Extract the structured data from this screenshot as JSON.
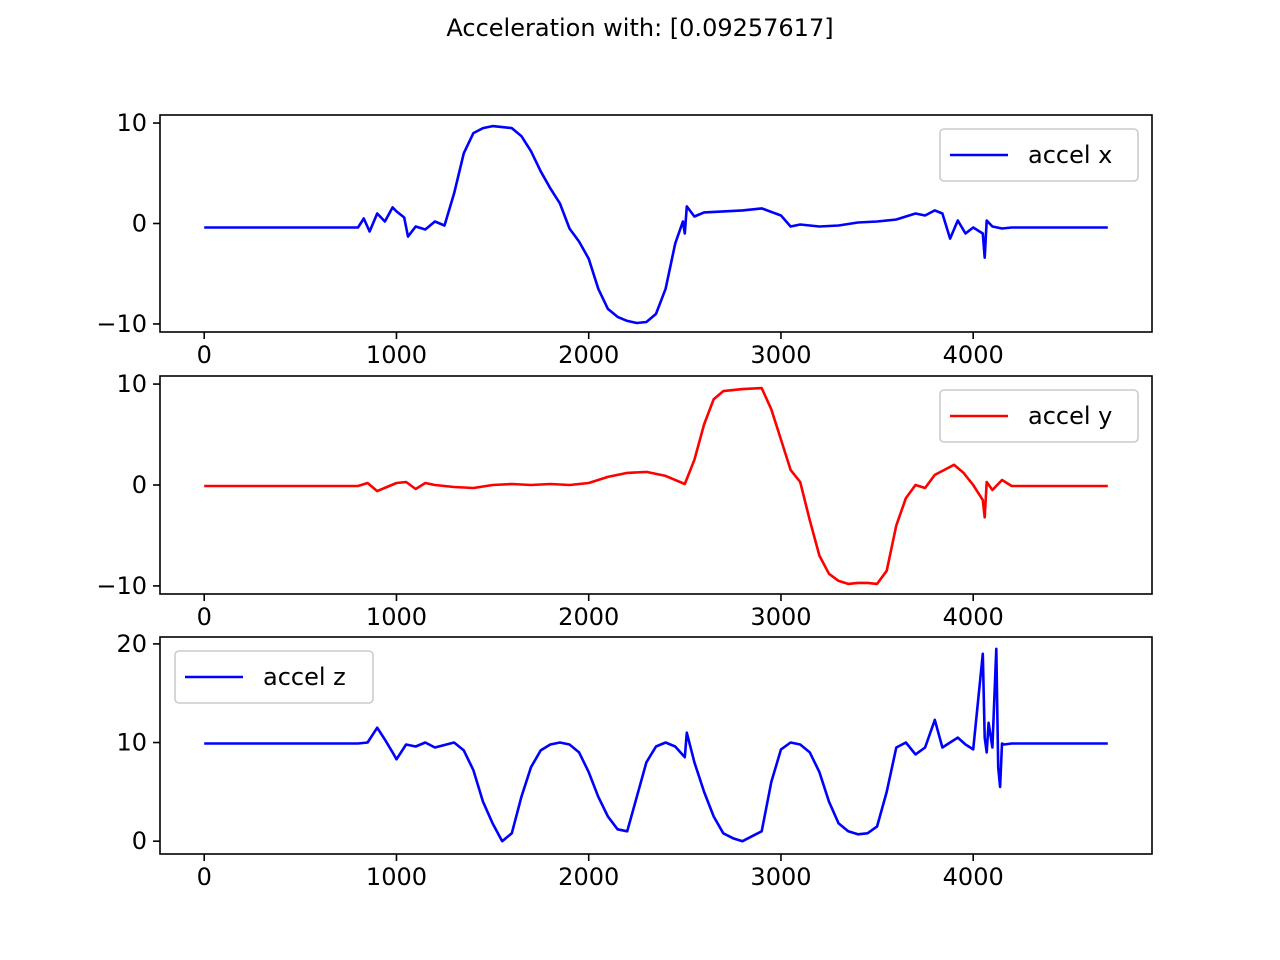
{
  "figure": {
    "title": "Acceleration with: [0.09257617]"
  },
  "chart_data": [
    {
      "type": "line",
      "title": "",
      "xlabel": "",
      "ylabel": "",
      "xlim": [
        -230,
        4930
      ],
      "ylim": [
        -10.8,
        10.8
      ],
      "xticks": [
        0,
        1000,
        2000,
        3000,
        4000
      ],
      "yticks": [
        -10,
        0,
        10
      ],
      "legend": "top-right",
      "series": [
        {
          "name": "accel x",
          "color": "#0000ff",
          "x": [
            0,
            800,
            830,
            860,
            900,
            940,
            980,
            1000,
            1040,
            1060,
            1100,
            1150,
            1200,
            1250,
            1300,
            1350,
            1400,
            1450,
            1500,
            1550,
            1600,
            1650,
            1700,
            1750,
            1800,
            1850,
            1900,
            1950,
            2000,
            2050,
            2100,
            2150,
            2200,
            2250,
            2300,
            2350,
            2400,
            2450,
            2490,
            2500,
            2510,
            2550,
            2600,
            2700,
            2800,
            2900,
            3000,
            3050,
            3100,
            3200,
            3300,
            3400,
            3500,
            3600,
            3700,
            3750,
            3800,
            3840,
            3880,
            3920,
            3960,
            4000,
            4050,
            4060,
            4070,
            4100,
            4150,
            4200,
            4700
          ],
          "y": [
            -0.4,
            -0.4,
            0.5,
            -0.8,
            1.0,
            0.2,
            1.6,
            1.2,
            0.6,
            -1.3,
            -0.3,
            -0.6,
            0.2,
            -0.2,
            3.0,
            7.0,
            9.0,
            9.5,
            9.7,
            9.6,
            9.5,
            8.7,
            7.2,
            5.2,
            3.5,
            2.0,
            -0.5,
            -1.8,
            -3.5,
            -6.5,
            -8.5,
            -9.3,
            -9.7,
            -9.9,
            -9.8,
            -9.0,
            -6.5,
            -2.0,
            0.2,
            -1.0,
            1.7,
            0.7,
            1.1,
            1.2,
            1.3,
            1.5,
            0.8,
            -0.3,
            -0.1,
            -0.3,
            -0.2,
            0.1,
            0.2,
            0.4,
            1.0,
            0.8,
            1.3,
            1.0,
            -1.5,
            0.3,
            -1.0,
            -0.4,
            -1.0,
            -3.4,
            0.3,
            -0.3,
            -0.5,
            -0.4,
            -0.4
          ]
        }
      ]
    },
    {
      "type": "line",
      "title": "",
      "xlabel": "",
      "ylabel": "",
      "xlim": [
        -230,
        4930
      ],
      "ylim": [
        -10.8,
        10.8
      ],
      "xticks": [
        0,
        1000,
        2000,
        3000,
        4000
      ],
      "yticks": [
        -10,
        0,
        10
      ],
      "legend": "top-right",
      "series": [
        {
          "name": "accel y",
          "color": "#ff0000",
          "x": [
            0,
            800,
            850,
            900,
            950,
            1000,
            1050,
            1100,
            1150,
            1200,
            1300,
            1400,
            1500,
            1600,
            1700,
            1800,
            1900,
            2000,
            2100,
            2200,
            2300,
            2400,
            2500,
            2550,
            2600,
            2650,
            2700,
            2800,
            2900,
            2950,
            3000,
            3050,
            3100,
            3150,
            3200,
            3250,
            3300,
            3350,
            3400,
            3450,
            3500,
            3550,
            3600,
            3650,
            3700,
            3750,
            3800,
            3850,
            3900,
            3950,
            4000,
            4050,
            4060,
            4070,
            4100,
            4150,
            4200,
            4700
          ],
          "y": [
            -0.1,
            -0.1,
            0.2,
            -0.6,
            -0.2,
            0.2,
            0.3,
            -0.4,
            0.2,
            0.0,
            -0.2,
            -0.3,
            0.0,
            0.1,
            0.0,
            0.1,
            0.0,
            0.2,
            0.8,
            1.2,
            1.3,
            0.9,
            0.1,
            2.5,
            6.0,
            8.5,
            9.3,
            9.5,
            9.6,
            7.5,
            4.5,
            1.5,
            0.3,
            -3.5,
            -7.0,
            -8.8,
            -9.5,
            -9.8,
            -9.7,
            -9.7,
            -9.8,
            -8.5,
            -4.0,
            -1.3,
            0.0,
            -0.3,
            1.0,
            1.5,
            2.0,
            1.2,
            0.0,
            -1.5,
            -3.2,
            0.3,
            -0.5,
            0.5,
            -0.1,
            -0.1
          ]
        }
      ]
    },
    {
      "type": "line",
      "title": "",
      "xlabel": "",
      "ylabel": "",
      "xlim": [
        -230,
        4930
      ],
      "ylim": [
        -1.3,
        20.7
      ],
      "xticks": [
        0,
        1000,
        2000,
        3000,
        4000
      ],
      "yticks": [
        0,
        10,
        20
      ],
      "legend": "top-left",
      "series": [
        {
          "name": "accel z",
          "color": "#0000ff",
          "x": [
            0,
            800,
            850,
            900,
            940,
            980,
            1000,
            1050,
            1100,
            1150,
            1200,
            1300,
            1350,
            1400,
            1450,
            1500,
            1550,
            1600,
            1650,
            1700,
            1750,
            1800,
            1850,
            1900,
            1950,
            2000,
            2050,
            2100,
            2150,
            2200,
            2250,
            2300,
            2350,
            2400,
            2450,
            2500,
            2510,
            2550,
            2600,
            2650,
            2700,
            2750,
            2800,
            2850,
            2900,
            2950,
            3000,
            3050,
            3100,
            3150,
            3200,
            3250,
            3300,
            3350,
            3400,
            3450,
            3500,
            3550,
            3600,
            3650,
            3700,
            3750,
            3800,
            3840,
            3880,
            3920,
            3960,
            4000,
            4050,
            4060,
            4070,
            4080,
            4100,
            4120,
            4130,
            4140,
            4150,
            4160,
            4200,
            4700
          ],
          "y": [
            9.9,
            9.9,
            10.0,
            11.5,
            10.3,
            9.0,
            8.3,
            9.8,
            9.6,
            10.0,
            9.5,
            10.0,
            9.2,
            7.2,
            4.0,
            1.8,
            0.0,
            0.8,
            4.5,
            7.5,
            9.2,
            9.8,
            10.0,
            9.8,
            9.0,
            7.0,
            4.5,
            2.5,
            1.2,
            1.0,
            4.5,
            8.0,
            9.6,
            10.0,
            9.6,
            8.5,
            11.0,
            8.0,
            5.0,
            2.5,
            0.8,
            0.3,
            0.0,
            0.5,
            1.0,
            6.0,
            9.3,
            10.0,
            9.8,
            9.0,
            7.0,
            4.0,
            1.8,
            1.0,
            0.7,
            0.8,
            1.5,
            5.0,
            9.5,
            10.0,
            8.8,
            9.5,
            12.3,
            9.5,
            10.0,
            10.5,
            9.8,
            9.3,
            19.0,
            10.5,
            9.0,
            12.0,
            9.5,
            19.5,
            7.5,
            5.5,
            9.9,
            9.8,
            9.9,
            9.9
          ]
        }
      ]
    }
  ]
}
